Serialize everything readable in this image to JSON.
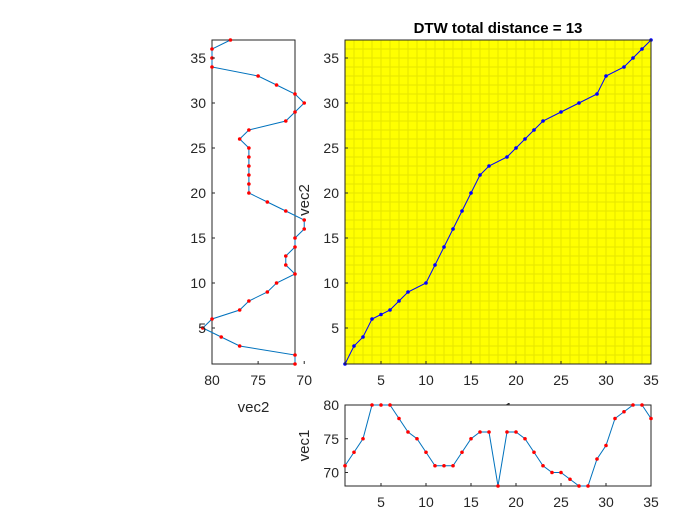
{
  "chart_data": [
    {
      "id": "main",
      "type": "line",
      "title": "DTW total distance = 13",
      "xlabel": "vec1",
      "ylabel": "vec2",
      "xlim": [
        1,
        35
      ],
      "ylim": [
        1,
        37
      ],
      "xticks": [
        5,
        10,
        15,
        20,
        25,
        30,
        35
      ],
      "yticks": [
        5,
        10,
        15,
        20,
        25,
        30,
        35
      ],
      "background": "#ffff00",
      "grid_color": "#e6e600",
      "grid": true,
      "line_color": "#0000ff",
      "series": [
        {
          "x": [
            1,
            2,
            3,
            4,
            5,
            6,
            7,
            8,
            10,
            11,
            12,
            13,
            14,
            15,
            16,
            17,
            19,
            20,
            21,
            22,
            23,
            25,
            27,
            29,
            30,
            32,
            33,
            34,
            35
          ],
          "y": [
            1,
            3,
            4,
            6,
            6.5,
            7,
            8,
            9,
            10,
            12,
            14,
            16,
            18,
            20,
            22,
            23,
            24,
            25,
            26,
            27,
            28,
            29,
            30,
            31,
            33,
            34,
            35,
            36,
            37
          ]
        }
      ]
    },
    {
      "id": "left",
      "type": "line",
      "orientation": "rotated",
      "xlabel": "vec2",
      "xlim": [
        71,
        80
      ],
      "xticks": [
        80,
        75,
        70
      ],
      "xreversed": true,
      "ylim": [
        1,
        37
      ],
      "yticks": [
        5,
        10,
        15,
        20,
        25,
        30,
        35
      ],
      "line_color": "#0072bd",
      "marker_color": "#ff0000",
      "series": [
        {
          "index": [
            1,
            2,
            3,
            4,
            5,
            6,
            7,
            8,
            9,
            10,
            11,
            12,
            13,
            14,
            15,
            16,
            17,
            18,
            19,
            20,
            21,
            22,
            23,
            24,
            25,
            26,
            27,
            28,
            29,
            30,
            31,
            32,
            33,
            34,
            35,
            36,
            37
          ],
          "values": [
            71,
            71,
            77,
            79,
            81,
            80,
            77,
            76,
            74,
            73,
            71,
            72,
            72,
            71,
            71,
            70,
            70,
            72,
            74,
            76,
            76,
            76,
            76,
            76,
            76,
            77,
            76,
            72,
            71,
            70,
            71,
            73,
            75,
            80,
            80,
            80,
            78
          ]
        }
      ]
    },
    {
      "id": "bottom",
      "type": "line",
      "ylabel": "vec1",
      "xlim": [
        1,
        35
      ],
      "ylim": [
        68,
        80
      ],
      "xticks": [
        5,
        10,
        15,
        20,
        25,
        30,
        35
      ],
      "yticks": [
        70,
        75,
        80
      ],
      "line_color": "#0072bd",
      "marker_color": "#ff0000",
      "series": [
        {
          "x": [
            1,
            2,
            3,
            4,
            5,
            6,
            7,
            8,
            9,
            10,
            11,
            12,
            13,
            14,
            15,
            16,
            17,
            18,
            19,
            20,
            21,
            22,
            23,
            24,
            25,
            26,
            27,
            28,
            29,
            30,
            31,
            32,
            33,
            34,
            35
          ],
          "values": [
            71,
            73,
            75,
            80,
            80,
            80,
            78,
            76,
            75,
            73,
            71,
            71,
            71,
            73,
            75,
            76,
            76,
            68,
            76,
            76,
            75,
            73,
            71,
            70,
            70,
            69,
            68,
            68,
            72,
            74,
            78,
            79,
            80,
            80,
            78
          ]
        }
      ]
    }
  ]
}
